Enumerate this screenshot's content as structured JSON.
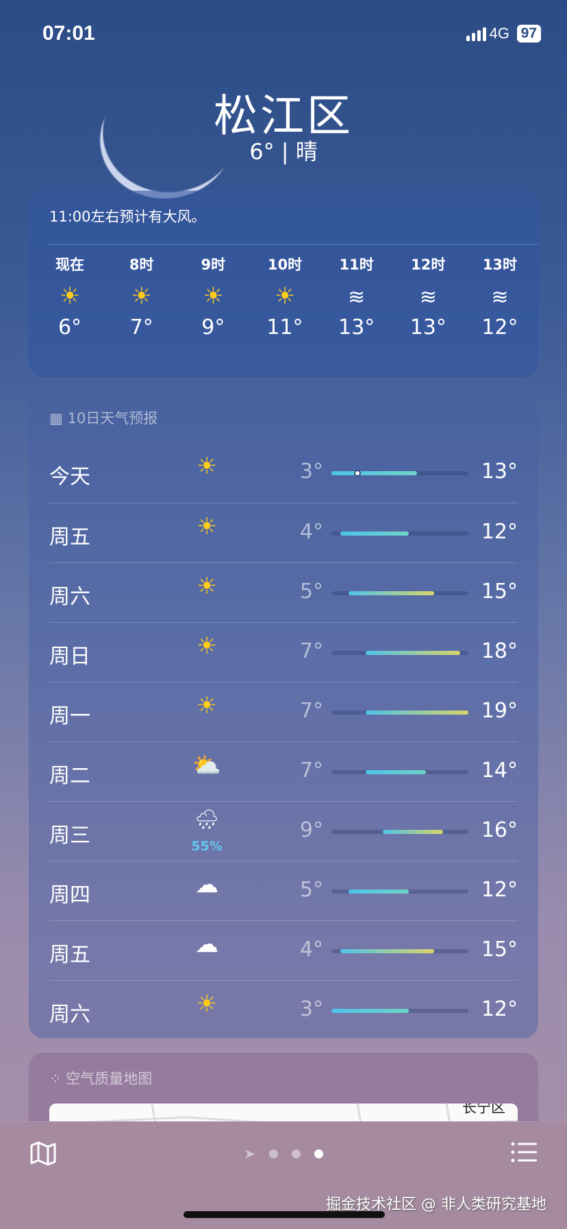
{
  "status": {
    "time": "07:01",
    "network": "4G",
    "battery": "97"
  },
  "location": {
    "city": "松江区",
    "current": "6° | 晴"
  },
  "hourly": {
    "alert": "11:00左右预计有大风。",
    "items": [
      {
        "label": "现在",
        "icon": "sun",
        "temp": "6°"
      },
      {
        "label": "8时",
        "icon": "sun",
        "temp": "7°"
      },
      {
        "label": "9时",
        "icon": "sun",
        "temp": "9°"
      },
      {
        "label": "10时",
        "icon": "sun",
        "temp": "11°"
      },
      {
        "label": "11时",
        "icon": "wind",
        "temp": "13°"
      },
      {
        "label": "12时",
        "icon": "wind",
        "temp": "13°"
      },
      {
        "label": "13时",
        "icon": "wind",
        "temp": "12°"
      }
    ]
  },
  "daily": {
    "title": "10日天气预报",
    "range": [
      3,
      19
    ],
    "current_temp": 6,
    "items": [
      {
        "day": "今天",
        "icon": "sun",
        "low": 3,
        "high": 13,
        "low_label": "3°",
        "high_label": "13°"
      },
      {
        "day": "周五",
        "icon": "sun",
        "low": 4,
        "high": 12,
        "low_label": "4°",
        "high_label": "12°"
      },
      {
        "day": "周六",
        "icon": "sun",
        "low": 5,
        "high": 15,
        "low_label": "5°",
        "high_label": "15°"
      },
      {
        "day": "周日",
        "icon": "sun",
        "low": 7,
        "high": 18,
        "low_label": "7°",
        "high_label": "18°"
      },
      {
        "day": "周一",
        "icon": "sun",
        "low": 7,
        "high": 19,
        "low_label": "7°",
        "high_label": "19°"
      },
      {
        "day": "周二",
        "icon": "partly-cloudy",
        "low": 7,
        "high": 14,
        "low_label": "7°",
        "high_label": "14°"
      },
      {
        "day": "周三",
        "icon": "rain",
        "pop": "55%",
        "low": 9,
        "high": 16,
        "low_label": "9°",
        "high_label": "16°"
      },
      {
        "day": "周四",
        "icon": "cloud",
        "low": 5,
        "high": 12,
        "low_label": "5°",
        "high_label": "12°"
      },
      {
        "day": "周五",
        "icon": "cloud",
        "low": 4,
        "high": 15,
        "low_label": "4°",
        "high_label": "15°"
      },
      {
        "day": "周六",
        "icon": "sun",
        "low": 3,
        "high": 12,
        "low_label": "3°",
        "high_label": "12°"
      }
    ]
  },
  "air_quality": {
    "title": "空气质量地图",
    "map_label": "长宁区"
  },
  "watermark": "掘金技术社区 @ 非人类研究基地",
  "colors": {
    "cool": "#4fc3ea",
    "mid": "#6ed3c6",
    "warm": "#d8d468"
  }
}
